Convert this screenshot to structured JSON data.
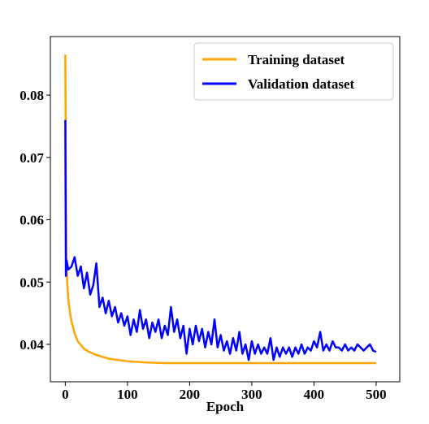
{
  "chart_data": {
    "type": "line",
    "xlabel": "Epoch",
    "xlim": [
      -24,
      538
    ],
    "xticks": [
      0,
      100,
      200,
      300,
      400,
      500
    ],
    "ylim": [
      0.034,
      0.0894
    ],
    "yticks": [
      0.04,
      0.05,
      0.06,
      0.07,
      0.08
    ],
    "legend": "upper right",
    "series": [
      {
        "name": "Training dataset",
        "color": "#ffa500",
        "x": [
          0,
          1,
          2,
          3,
          5,
          8,
          10,
          15,
          20,
          30,
          40,
          50,
          70,
          100,
          130,
          160,
          200,
          300,
          400,
          500
        ],
        "values": [
          0.0865,
          0.066,
          0.054,
          0.05,
          0.047,
          0.0448,
          0.0437,
          0.0418,
          0.0405,
          0.0393,
          0.0387,
          0.0383,
          0.0377,
          0.0373,
          0.0371,
          0.037,
          0.037,
          0.037,
          0.037,
          0.037
        ]
      },
      {
        "name": "Validation dataset",
        "color": "#0000ff",
        "x": [
          0,
          1,
          2,
          5,
          10,
          15,
          20,
          25,
          30,
          35,
          40,
          45,
          50,
          55,
          60,
          65,
          70,
          75,
          80,
          85,
          90,
          95,
          100,
          105,
          110,
          115,
          120,
          125,
          130,
          135,
          140,
          145,
          150,
          155,
          160,
          165,
          170,
          175,
          180,
          185,
          190,
          195,
          200,
          205,
          210,
          215,
          220,
          225,
          230,
          235,
          240,
          245,
          250,
          255,
          260,
          265,
          270,
          275,
          280,
          285,
          290,
          295,
          300,
          305,
          310,
          315,
          320,
          325,
          330,
          335,
          340,
          345,
          350,
          355,
          360,
          365,
          370,
          375,
          380,
          385,
          390,
          395,
          400,
          405,
          410,
          415,
          420,
          425,
          430,
          435,
          440,
          445,
          450,
          455,
          460,
          465,
          470,
          475,
          480,
          485,
          490,
          495,
          500
        ],
        "values": [
          0.076,
          0.051,
          0.0535,
          0.052,
          0.0525,
          0.054,
          0.051,
          0.0525,
          0.049,
          0.0515,
          0.048,
          0.0495,
          0.053,
          0.046,
          0.0475,
          0.045,
          0.047,
          0.0445,
          0.046,
          0.0435,
          0.045,
          0.043,
          0.0445,
          0.0415,
          0.044,
          0.042,
          0.0455,
          0.0425,
          0.044,
          0.041,
          0.0435,
          0.042,
          0.044,
          0.041,
          0.043,
          0.0415,
          0.046,
          0.042,
          0.044,
          0.041,
          0.043,
          0.0385,
          0.0425,
          0.04,
          0.043,
          0.0405,
          0.0425,
          0.0395,
          0.042,
          0.04,
          0.044,
          0.0395,
          0.0415,
          0.039,
          0.0405,
          0.0385,
          0.041,
          0.039,
          0.042,
          0.0385,
          0.04,
          0.0375,
          0.0405,
          0.0385,
          0.04,
          0.0385,
          0.0395,
          0.0385,
          0.041,
          0.0375,
          0.0395,
          0.038,
          0.0395,
          0.0385,
          0.0395,
          0.038,
          0.0395,
          0.0385,
          0.04,
          0.0385,
          0.0395,
          0.039,
          0.0405,
          0.0395,
          0.042,
          0.039,
          0.04,
          0.039,
          0.0405,
          0.0395,
          0.0395,
          0.039,
          0.04,
          0.039,
          0.0395,
          0.039,
          0.04,
          0.0395,
          0.039,
          0.0395,
          0.04,
          0.039,
          0.0388
        ]
      }
    ]
  }
}
